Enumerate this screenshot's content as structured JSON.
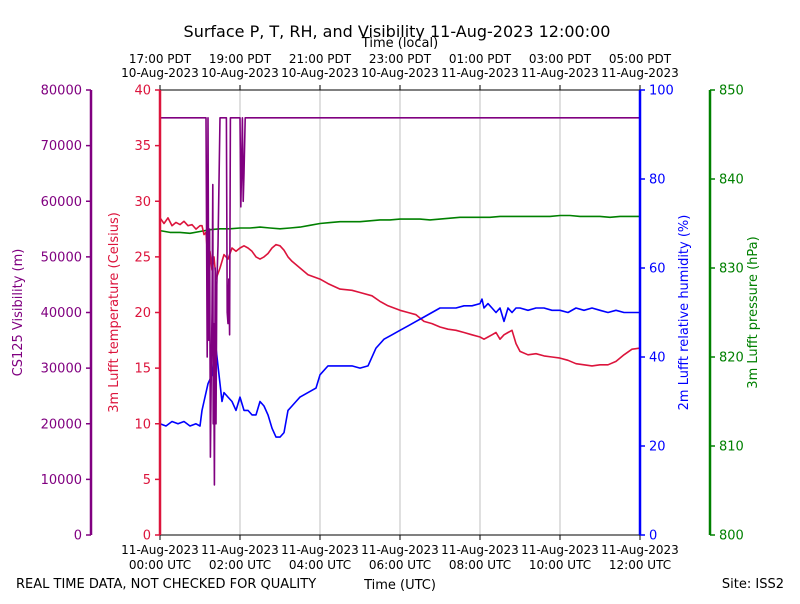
{
  "chart_data": {
    "type": "line",
    "title": "Surface P, T, RH, and Visibility 11-Aug-2023 12:00:00",
    "top_axis_title": "Time (local)",
    "xlabel": "Time (UTC)",
    "footer_left": "REAL TIME DATA, NOT CHECKED FOR QUALITY",
    "footer_right": "Site: ISS2",
    "grid": "vertical only",
    "x_range_hours_utc": [
      0,
      12
    ],
    "x_ticks_bottom": [
      {
        "line1": "11-Aug-2023",
        "line2": "00:00 UTC"
      },
      {
        "line1": "11-Aug-2023",
        "line2": "02:00 UTC"
      },
      {
        "line1": "11-Aug-2023",
        "line2": "04:00 UTC"
      },
      {
        "line1": "11-Aug-2023",
        "line2": "06:00 UTC"
      },
      {
        "line1": "11-Aug-2023",
        "line2": "08:00 UTC"
      },
      {
        "line1": "11-Aug-2023",
        "line2": "10:00 UTC"
      },
      {
        "line1": "11-Aug-2023",
        "line2": "12:00 UTC"
      }
    ],
    "x_ticks_top": [
      {
        "line1": "17:00 PDT",
        "line2": "10-Aug-2023"
      },
      {
        "line1": "19:00 PDT",
        "line2": "10-Aug-2023"
      },
      {
        "line1": "21:00 PDT",
        "line2": "10-Aug-2023"
      },
      {
        "line1": "23:00 PDT",
        "line2": "10-Aug-2023"
      },
      {
        "line1": "01:00 PDT",
        "line2": "11-Aug-2023"
      },
      {
        "line1": "03:00 PDT",
        "line2": "11-Aug-2023"
      },
      {
        "line1": "05:00 PDT",
        "line2": "11-Aug-2023"
      }
    ],
    "axes": {
      "visibility": {
        "label": "CS125 Visibility (m)",
        "color": "#800080",
        "ylim": [
          0,
          80000
        ],
        "ticks": [
          "0",
          "10000",
          "20000",
          "30000",
          "40000",
          "50000",
          "60000",
          "70000",
          "80000"
        ]
      },
      "temperature": {
        "label": "3m Lufft temperature (Celsius)",
        "color": "#dc143c",
        "ylim": [
          0,
          40
        ],
        "ticks": [
          "0",
          "5",
          "10",
          "15",
          "20",
          "25",
          "30",
          "35",
          "40"
        ]
      },
      "humidity": {
        "label": "2m Lufft relative humidity (%)",
        "color": "#0000ff",
        "ylim": [
          0,
          100
        ],
        "ticks": [
          "0",
          "20",
          "40",
          "60",
          "80",
          "100"
        ]
      },
      "pressure": {
        "label": "3m Lufft pressure (hPa)",
        "color": "#008000",
        "ylim": [
          800,
          850
        ],
        "ticks": [
          "800",
          "810",
          "820",
          "830",
          "840",
          "850"
        ]
      }
    },
    "series": [
      {
        "axis": "pressure",
        "color": "#008000",
        "x": [
          0,
          0.25,
          0.5,
          0.75,
          1.0,
          1.25,
          1.5,
          1.75,
          2.0,
          2.25,
          2.5,
          2.75,
          3.0,
          3.25,
          3.5,
          3.75,
          4.0,
          4.25,
          4.5,
          4.75,
          5.0,
          5.25,
          5.5,
          5.75,
          6.0,
          6.25,
          6.5,
          6.75,
          7.0,
          7.25,
          7.5,
          7.75,
          8.0,
          8.25,
          8.5,
          8.75,
          9.0,
          9.25,
          9.5,
          9.75,
          10.0,
          10.25,
          10.5,
          10.75,
          11.0,
          11.25,
          11.5,
          11.75,
          12.0
        ],
        "values": [
          834.2,
          834.0,
          834.0,
          833.9,
          834.1,
          834.3,
          834.4,
          834.4,
          834.5,
          834.5,
          834.6,
          834.5,
          834.4,
          834.5,
          834.6,
          834.8,
          835.0,
          835.1,
          835.2,
          835.2,
          835.2,
          835.3,
          835.4,
          835.4,
          835.5,
          835.5,
          835.5,
          835.4,
          835.5,
          835.6,
          835.7,
          835.7,
          835.7,
          835.7,
          835.8,
          835.8,
          835.8,
          835.8,
          835.8,
          835.8,
          835.9,
          835.9,
          835.8,
          835.8,
          835.8,
          835.7,
          835.8,
          835.8,
          835.8
        ]
      },
      {
        "axis": "temperature",
        "color": "#dc143c",
        "x": [
          0,
          0.1,
          0.2,
          0.3,
          0.4,
          0.5,
          0.6,
          0.7,
          0.8,
          0.9,
          1.0,
          1.05,
          1.1,
          1.15,
          1.2,
          1.25,
          1.3,
          1.35,
          1.4,
          1.5,
          1.6,
          1.7,
          1.8,
          1.9,
          2.0,
          2.1,
          2.2,
          2.3,
          2.4,
          2.5,
          2.6,
          2.7,
          2.8,
          2.9,
          3.0,
          3.1,
          3.2,
          3.3,
          3.5,
          3.7,
          4.0,
          4.2,
          4.5,
          4.8,
          5.0,
          5.3,
          5.5,
          5.7,
          6.0,
          6.2,
          6.4,
          6.6,
          6.8,
          7.0,
          7.2,
          7.4,
          7.6,
          7.8,
          8.0,
          8.1,
          8.2,
          8.3,
          8.4,
          8.5,
          8.6,
          8.7,
          8.8,
          8.9,
          9.0,
          9.2,
          9.4,
          9.6,
          9.8,
          10.0,
          10.2,
          10.4,
          10.6,
          10.8,
          11.0,
          11.2,
          11.4,
          11.6,
          11.8,
          12.0
        ],
        "values": [
          28.5,
          28.0,
          28.5,
          27.8,
          28.1,
          27.9,
          28.2,
          27.8,
          27.9,
          27.5,
          27.8,
          27.8,
          27.0,
          27.2,
          24.5,
          25.5,
          23.8,
          25.0,
          23.0,
          24.0,
          25.2,
          24.8,
          25.8,
          25.5,
          25.8,
          26.0,
          25.8,
          25.5,
          25.0,
          24.8,
          25.0,
          25.3,
          25.8,
          26.1,
          26.0,
          25.6,
          25.0,
          24.6,
          24.0,
          23.4,
          23.0,
          22.6,
          22.1,
          22.0,
          21.8,
          21.5,
          21.0,
          20.6,
          20.2,
          20.0,
          19.8,
          19.2,
          19.0,
          18.7,
          18.5,
          18.4,
          18.2,
          18.0,
          17.8,
          17.6,
          17.8,
          18.0,
          18.2,
          17.6,
          18.0,
          18.2,
          18.4,
          17.2,
          16.5,
          16.2,
          16.3,
          16.1,
          16.0,
          15.9,
          15.7,
          15.4,
          15.3,
          15.2,
          15.3,
          15.3,
          15.6,
          16.2,
          16.7,
          16.8
        ]
      },
      {
        "axis": "humidity",
        "color": "#0000ff",
        "x": [
          0,
          0.15,
          0.3,
          0.45,
          0.6,
          0.75,
          0.9,
          1.0,
          1.05,
          1.1,
          1.15,
          1.2,
          1.3,
          1.35,
          1.4,
          1.45,
          1.5,
          1.55,
          1.6,
          1.7,
          1.8,
          1.9,
          2.0,
          2.1,
          2.2,
          2.3,
          2.4,
          2.5,
          2.6,
          2.7,
          2.8,
          2.9,
          3.0,
          3.1,
          3.2,
          3.3,
          3.4,
          3.5,
          3.7,
          3.9,
          4.0,
          4.2,
          4.4,
          4.6,
          4.8,
          5.0,
          5.2,
          5.4,
          5.6,
          5.8,
          6.0,
          6.2,
          6.4,
          6.6,
          6.8,
          7.0,
          7.2,
          7.4,
          7.6,
          7.8,
          8.0,
          8.05,
          8.1,
          8.2,
          8.3,
          8.4,
          8.5,
          8.6,
          8.7,
          8.8,
          8.9,
          9.0,
          9.2,
          9.4,
          9.6,
          9.8,
          10.0,
          10.2,
          10.4,
          10.6,
          10.8,
          11.0,
          11.2,
          11.4,
          11.6,
          11.8,
          12.0
        ],
        "values": [
          25,
          24.5,
          25.5,
          25,
          25.5,
          24.5,
          25,
          24.5,
          28,
          30,
          32,
          34,
          36,
          40,
          42,
          38,
          34,
          30,
          32,
          31,
          30,
          28,
          31,
          28,
          28,
          27,
          27,
          30,
          29,
          27,
          24,
          22,
          22,
          23,
          28,
          29,
          30,
          31,
          32,
          33,
          36,
          38,
          38,
          38,
          38,
          37.5,
          38,
          42,
          44,
          45,
          46,
          47,
          48,
          49,
          50,
          51,
          51,
          51,
          51.5,
          51.5,
          52,
          53,
          51,
          52,
          51,
          50,
          51,
          48,
          51,
          50,
          51,
          51,
          50.5,
          51,
          51,
          50.5,
          50.5,
          50,
          51,
          50.5,
          51,
          50.5,
          50,
          50.5,
          50,
          50,
          50
        ]
      },
      {
        "axis": "visibility",
        "color": "#800080",
        "x": [
          0,
          0.3,
          0.6,
          0.9,
          1.1,
          1.13,
          1.15,
          1.18,
          1.2,
          1.22,
          1.24,
          1.26,
          1.28,
          1.3,
          1.32,
          1.33,
          1.34,
          1.36,
          1.38,
          1.4,
          1.42,
          1.45,
          1.5,
          1.55,
          1.6,
          1.63,
          1.66,
          1.68,
          1.7,
          1.72,
          1.74,
          1.76,
          1.8,
          1.85,
          1.9,
          1.95,
          2.0,
          2.02,
          2.04,
          2.06,
          2.08,
          2.1,
          2.13,
          2.3,
          3.0,
          4.0,
          5.0,
          6.0,
          7.0,
          8.0,
          9.0,
          10.0,
          11.0,
          12.0
        ],
        "values": [
          75000,
          75000,
          75000,
          75000,
          75000,
          75000,
          75000,
          32000,
          75000,
          35000,
          55000,
          14000,
          28000,
          40000,
          63000,
          20000,
          38000,
          9000,
          48000,
          20000,
          45000,
          52000,
          75000,
          75000,
          75000,
          75000,
          75000,
          40000,
          38000,
          46000,
          36000,
          75000,
          75000,
          75000,
          75000,
          75000,
          75000,
          59000,
          66000,
          75000,
          60000,
          65000,
          75000,
          75000,
          75000,
          75000,
          75000,
          75000,
          75000,
          75000,
          75000,
          75000,
          75000,
          75000
        ]
      }
    ]
  }
}
